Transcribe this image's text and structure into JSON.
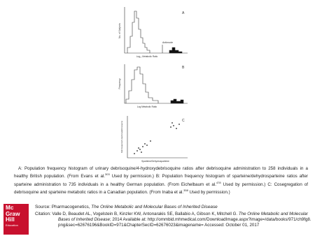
{
  "figure": {
    "panel_a": {
      "letter": "A",
      "y_label": "No. of Subjects",
      "x_label": "Log₁₀ Metabolic Ratio",
      "annotation": "Antimode"
    },
    "panel_b": {
      "letter": "B",
      "y_label": "Frequency",
      "x_label": "Log Metabolic Ratio"
    },
    "panel_c": {
      "letter": "C",
      "y_label": "Debrisoquine/4-Hydroxydebrisoquine",
      "x_label": "Sparteine/Dehydrosparteine"
    }
  },
  "caption": [
    {
      "text": "A: Population frequency histogram of urinary debrisoquine/4-hydroxydebrisoquine ratios after debrisoquine administration to 258 individuals in a healthy British population. (From Evans et al."
    },
    {
      "sup": "303"
    },
    {
      "text": " Used by permission.) B: Population frequency histogram of sparteine/dehydrosparteine ratios after sparteine administration to 735 individuals in a healthy German population. (From Eichelbaum et al."
    },
    {
      "sup": "478"
    },
    {
      "text": " Used by permission.) C: Cosegregation of debrisoquine and sparteine metabolic ratios in a Canadian population. (From Inaba et al."
    },
    {
      "sup": "358"
    },
    {
      "text": " Used by permission.)"
    }
  ],
  "logo": {
    "line1": "Mc",
    "line2": "Graw",
    "line3": "Hill",
    "line4": "Education"
  },
  "source": {
    "prefix": "Source: Pharmacogenetics, ",
    "title": "The Online Metabolic and Molecular Bases of Inherited Disease"
  },
  "citation": {
    "prefix": "Citation: Valle D, Beaudet AL, Vogelstein B, Kinzler KW, Antonarakis SE, Ballabio A, Gibson K, Mitchell G. ",
    "title": "The Online Metabolic and Molecular Bases of Inherited Disease",
    "rest": "; 2014 Available at: http://ommbid.mhmedical.com/DownloadImage.aspx?image=/data/books/971/ch9fg8.png&sec=62676196&BookID=971&ChapterSecID=62676023&imagename= Accessed: October 01, 2017"
  }
}
